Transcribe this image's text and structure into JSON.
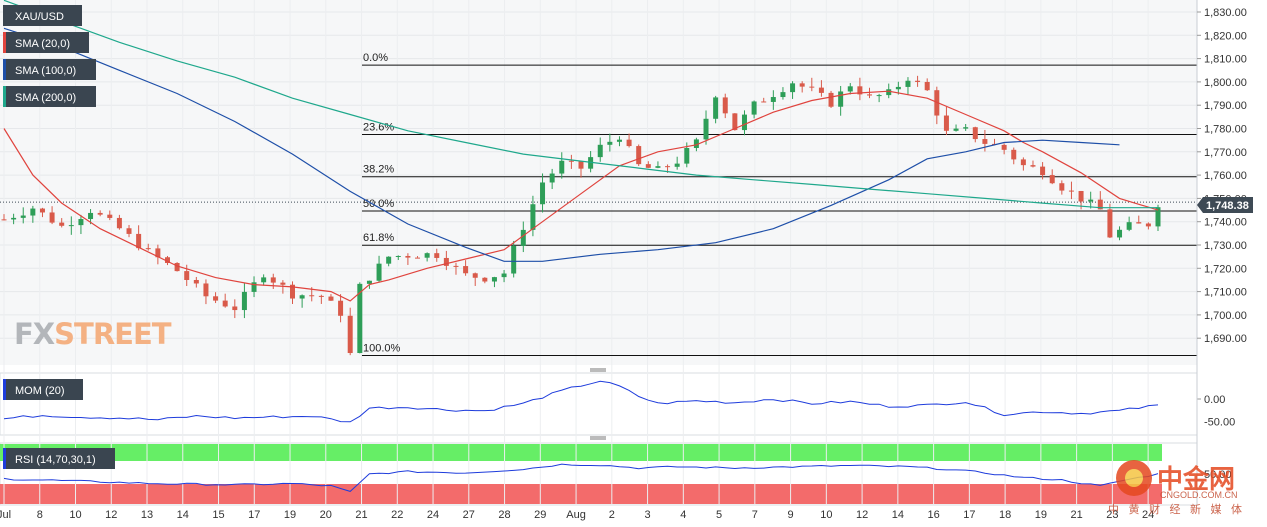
{
  "main_panel": {
    "symbol": "XAU/USD",
    "indicators": [
      "SMA (20,0)",
      "SMA (100,0)",
      "SMA (200,0)"
    ],
    "indicator_colors": [
      "#e0443e",
      "#1e4fa8",
      "#1fa88c"
    ],
    "price_tag": "1,748.38",
    "price_tag_color": "#3e4a55"
  },
  "brand": {
    "fx": "FX",
    "street": "STREET"
  },
  "watermark": {
    "cn_logo": "中金网",
    "cn_url": "CNGOLD.COM.CN",
    "cn_tagline": "中 黄 财 经 新 媒 体"
  },
  "fibonacci": [
    {
      "label": "0.0%",
      "value": 1807.2
    },
    {
      "label": "23.6%",
      "value": 1777.4
    },
    {
      "label": "38.2%",
      "value": 1759.3
    },
    {
      "label": "50.0%",
      "value": 1744.6
    },
    {
      "label": "61.8%",
      "value": 1729.9
    },
    {
      "label": "100.0%",
      "value": 1682.6
    }
  ],
  "mom_panel": {
    "label": "MOM (20)",
    "ticks": [
      "0.00",
      "-50.00"
    ]
  },
  "rsi_panel": {
    "label": "RSI (14,70,30,1)",
    "ticks": [
      "50.00"
    ],
    "overbought_color": "#66ee66",
    "oversold_color": "#f36b6b"
  },
  "chart_data": {
    "type": "candlestick",
    "title": "",
    "ylim": [
      1680,
      1830
    ],
    "y_ticks": [
      "1,830.00",
      "1,820.00",
      "1,810.00",
      "1,800.00",
      "1,790.00",
      "1,780.00",
      "1,770.00",
      "1,760.00",
      "1,750.00",
      "1,740.00",
      "1,730.00",
      "1,720.00",
      "1,710.00",
      "1,700.00",
      "1,690.00"
    ],
    "x_ticks": [
      "Jul",
      "8",
      "10",
      "12",
      "13",
      "14",
      "15",
      "17",
      "19",
      "20",
      "21",
      "22",
      "24",
      "27",
      "28",
      "29",
      "Aug",
      "2",
      "3",
      "4",
      "5",
      "7",
      "9",
      "10",
      "12",
      "14",
      "16",
      "17",
      "18",
      "19",
      "21",
      "23",
      "24"
    ],
    "x_ticks_alt": [
      "Jul",
      "8",
      "10",
      "12",
      "13",
      "14",
      "15",
      "17",
      "19",
      "20",
      "21",
      "22",
      "24",
      "27",
      "28",
      "29",
      "Aug",
      "2",
      "3",
      "4",
      "5",
      "7",
      "9",
      "10",
      "12",
      "14",
      "16",
      "17",
      "18",
      "19",
      "20",
      "21",
      "23",
      "24"
    ],
    "close_path": [
      [
        0,
        1741
      ],
      [
        3,
        1746
      ],
      [
        6,
        1738
      ],
      [
        9,
        1745
      ],
      [
        12,
        1737
      ],
      [
        15,
        1727
      ],
      [
        18,
        1719
      ],
      [
        21,
        1708
      ],
      [
        24,
        1703
      ],
      [
        27,
        1718
      ],
      [
        30,
        1709
      ],
      [
        33,
        1708
      ],
      [
        35,
        1701
      ],
      [
        36,
        1683
      ],
      [
        37,
        1712
      ],
      [
        40,
        1725
      ],
      [
        43,
        1726
      ],
      [
        45,
        1726
      ],
      [
        48,
        1717
      ],
      [
        50,
        1716
      ],
      [
        52,
        1718
      ],
      [
        54,
        1738
      ],
      [
        56,
        1757
      ],
      [
        58,
        1765
      ],
      [
        60,
        1763
      ],
      [
        62,
        1772
      ],
      [
        64,
        1777
      ],
      [
        66,
        1764
      ],
      [
        68,
        1762
      ],
      [
        70,
        1766
      ],
      [
        72,
        1774
      ],
      [
        74,
        1795
      ],
      [
        76,
        1780
      ],
      [
        78,
        1790
      ],
      [
        80,
        1795
      ],
      [
        82,
        1800
      ],
      [
        84,
        1796
      ],
      [
        86,
        1791
      ],
      [
        88,
        1799
      ],
      [
        90,
        1793
      ],
      [
        92,
        1795
      ],
      [
        94,
        1802
      ],
      [
        96,
        1796
      ],
      [
        98,
        1778
      ],
      [
        100,
        1779
      ],
      [
        102,
        1774
      ],
      [
        104,
        1771
      ],
      [
        106,
        1764
      ],
      [
        108,
        1762
      ],
      [
        110,
        1755
      ],
      [
        112,
        1750
      ],
      [
        114,
        1745
      ],
      [
        115,
        1734
      ],
      [
        117,
        1738
      ],
      [
        119,
        1739
      ],
      [
        120,
        1748
      ]
    ],
    "series": [
      {
        "name": "SMA (20,0)",
        "color": "#e0443e",
        "values": [
          [
            0,
            1780
          ],
          [
            3,
            1760
          ],
          [
            6,
            1748
          ],
          [
            10,
            1737
          ],
          [
            14,
            1729
          ],
          [
            18,
            1721
          ],
          [
            22,
            1716
          ],
          [
            26,
            1713
          ],
          [
            30,
            1712
          ],
          [
            34,
            1710
          ],
          [
            36,
            1706
          ],
          [
            38,
            1713
          ],
          [
            40,
            1715
          ],
          [
            44,
            1720
          ],
          [
            48,
            1724
          ],
          [
            52,
            1728
          ],
          [
            56,
            1740
          ],
          [
            60,
            1752
          ],
          [
            64,
            1764
          ],
          [
            68,
            1770
          ],
          [
            72,
            1773
          ],
          [
            76,
            1780
          ],
          [
            80,
            1787
          ],
          [
            84,
            1792
          ],
          [
            88,
            1795
          ],
          [
            92,
            1796
          ],
          [
            96,
            1793
          ],
          [
            100,
            1786
          ],
          [
            104,
            1779
          ],
          [
            106,
            1774
          ],
          [
            108,
            1770
          ],
          [
            112,
            1761
          ],
          [
            116,
            1750
          ],
          [
            120,
            1745
          ]
        ]
      },
      {
        "name": "SMA (100,0)",
        "color": "#1e4fa8",
        "values": [
          [
            0,
            1823
          ],
          [
            6,
            1815
          ],
          [
            12,
            1805
          ],
          [
            18,
            1795
          ],
          [
            24,
            1783
          ],
          [
            30,
            1769
          ],
          [
            36,
            1753
          ],
          [
            42,
            1739
          ],
          [
            48,
            1729
          ],
          [
            52,
            1723
          ],
          [
            56,
            1723
          ],
          [
            62,
            1726
          ],
          [
            68,
            1728
          ],
          [
            74,
            1731
          ],
          [
            80,
            1737
          ],
          [
            86,
            1747
          ],
          [
            92,
            1758
          ],
          [
            96,
            1767
          ],
          [
            100,
            1770
          ],
          [
            104,
            1774
          ],
          [
            108,
            1775
          ],
          [
            112,
            1774
          ],
          [
            116,
            1773
          ]
        ]
      },
      {
        "name": "SMA (200,0)",
        "color": "#1fa88c",
        "values": [
          [
            0,
            1835
          ],
          [
            6,
            1826
          ],
          [
            12,
            1817
          ],
          [
            18,
            1809
          ],
          [
            24,
            1802
          ],
          [
            30,
            1793
          ],
          [
            36,
            1786
          ],
          [
            42,
            1779
          ],
          [
            48,
            1774
          ],
          [
            54,
            1769
          ],
          [
            60,
            1766
          ],
          [
            66,
            1763
          ],
          [
            72,
            1760
          ],
          [
            78,
            1758
          ],
          [
            84,
            1756
          ],
          [
            90,
            1754
          ],
          [
            96,
            1752
          ],
          [
            102,
            1750
          ],
          [
            108,
            1748
          ],
          [
            114,
            1746
          ],
          [
            120,
            1746
          ]
        ]
      }
    ],
    "mom": [
      [
        0,
        -44
      ],
      [
        4,
        -36
      ],
      [
        8,
        -40
      ],
      [
        12,
        -42
      ],
      [
        16,
        -46
      ],
      [
        20,
        -38
      ],
      [
        24,
        -42
      ],
      [
        28,
        -40
      ],
      [
        32,
        -38
      ],
      [
        36,
        -52
      ],
      [
        38,
        -20
      ],
      [
        42,
        -18
      ],
      [
        46,
        -24
      ],
      [
        50,
        -26
      ],
      [
        54,
        -10
      ],
      [
        58,
        18
      ],
      [
        60,
        30
      ],
      [
        62,
        40
      ],
      [
        64,
        28
      ],
      [
        66,
        6
      ],
      [
        68,
        -10
      ],
      [
        72,
        -4
      ],
      [
        76,
        -8
      ],
      [
        80,
        0
      ],
      [
        84,
        -10
      ],
      [
        88,
        -6
      ],
      [
        92,
        -16
      ],
      [
        96,
        -14
      ],
      [
        100,
        -6
      ],
      [
        104,
        -34
      ],
      [
        108,
        -28
      ],
      [
        112,
        -32
      ],
      [
        116,
        -26
      ],
      [
        120,
        -14
      ]
    ],
    "rsi": [
      [
        0,
        42
      ],
      [
        8,
        38
      ],
      [
        16,
        34
      ],
      [
        24,
        32
      ],
      [
        30,
        34
      ],
      [
        34,
        30
      ],
      [
        36,
        20
      ],
      [
        38,
        50
      ],
      [
        42,
        54
      ],
      [
        48,
        52
      ],
      [
        54,
        58
      ],
      [
        58,
        66
      ],
      [
        62,
        65
      ],
      [
        66,
        60
      ],
      [
        70,
        62
      ],
      [
        76,
        60
      ],
      [
        82,
        62
      ],
      [
        88,
        64
      ],
      [
        94,
        62
      ],
      [
        98,
        58
      ],
      [
        102,
        52
      ],
      [
        106,
        44
      ],
      [
        110,
        40
      ],
      [
        114,
        30
      ],
      [
        116,
        38
      ],
      [
        120,
        50
      ]
    ]
  }
}
